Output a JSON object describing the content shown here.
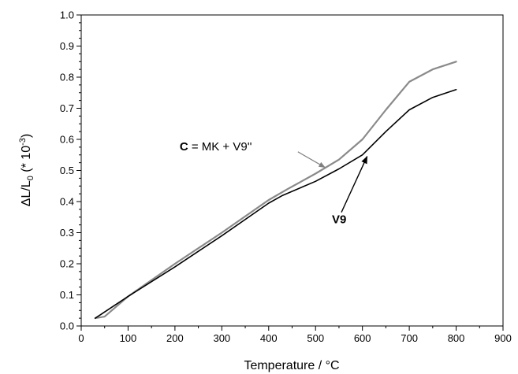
{
  "chart_data": {
    "type": "line",
    "xlabel": "Temperature / °C",
    "ylabel_parts": {
      "main": "ΔL/L",
      "sub": "0",
      "paren_open": " (* 10",
      "sup": "-3",
      "paren_close": ")"
    },
    "xlim": [
      0,
      900
    ],
    "ylim": [
      0.0,
      1.0
    ],
    "xticks": [
      "0",
      "100",
      "200",
      "300",
      "400",
      "500",
      "600",
      "700",
      "800",
      "900"
    ],
    "yticks": [
      "0.0",
      "0.1",
      "0.2",
      "0.3",
      "0.4",
      "0.5",
      "0.6",
      "0.7",
      "0.8",
      "0.9",
      "1.0"
    ],
    "grid": false,
    "series": [
      {
        "name": "V9",
        "color": "#000000",
        "x": [
          30,
          100,
          200,
          300,
          400,
          430,
          500,
          550,
          600,
          650,
          700,
          750,
          800
        ],
        "y": [
          0.025,
          0.095,
          0.19,
          0.29,
          0.395,
          0.42,
          0.465,
          0.505,
          0.55,
          0.625,
          0.695,
          0.735,
          0.76
        ]
      },
      {
        "name": "C = MK + V9''",
        "color": "#8a8a8a",
        "x": [
          30,
          50,
          100,
          200,
          300,
          400,
          440,
          500,
          550,
          600,
          650,
          700,
          750,
          800
        ],
        "y": [
          0.025,
          0.03,
          0.095,
          0.2,
          0.3,
          0.405,
          0.44,
          0.49,
          0.535,
          0.6,
          0.695,
          0.785,
          0.825,
          0.85
        ]
      }
    ],
    "annotations": [
      {
        "bold": "C",
        "rest": " = MK + V9''",
        "x_text": 210,
        "y_text": 0.565,
        "x_arrow": 520,
        "y_arrow": 0.51
      },
      {
        "bold": "V9",
        "rest": "",
        "x_text": 535,
        "y_text": 0.33,
        "x_arrow": 610,
        "y_arrow": 0.545
      }
    ]
  }
}
